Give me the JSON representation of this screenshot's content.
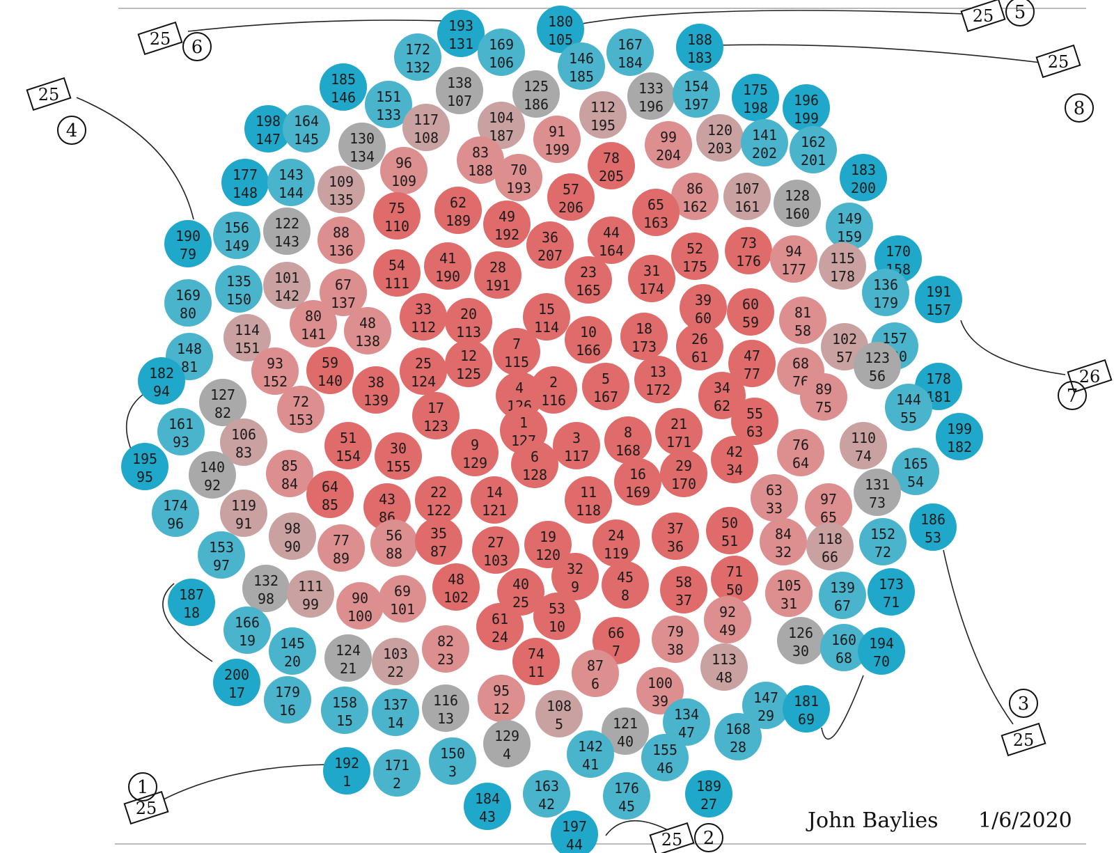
{
  "signature": "John Baylies",
  "date": "1/6/2020",
  "colors": {
    "center": "#e06b6b",
    "inner": "#dd8e8e",
    "middle": "#c9a1a1",
    "gray": "#a9a9a9",
    "outer": "#4ab4cc",
    "edge": "#1fa8c9"
  },
  "connectors": [
    {
      "label": "1",
      "count": "25"
    },
    {
      "label": "2",
      "count": "25"
    },
    {
      "label": "3",
      "count": "25"
    },
    {
      "label": "4",
      "count": "25"
    },
    {
      "label": "5",
      "count": "25"
    },
    {
      "label": "6",
      "count": "25"
    },
    {
      "label": "7",
      "count": "26"
    },
    {
      "label": "8",
      "count": "25"
    }
  ],
  "discs": [
    {
      "a": "193",
      "b": "131",
      "tone": "edge"
    },
    {
      "a": "180",
      "b": "105",
      "tone": "edge"
    },
    {
      "a": "172",
      "b": "132",
      "tone": "outer"
    },
    {
      "a": "169",
      "b": "106",
      "tone": "outer"
    },
    {
      "a": "167",
      "b": "184",
      "tone": "outer"
    },
    {
      "a": "188",
      "b": "183",
      "tone": "edge"
    },
    {
      "a": "185",
      "b": "146",
      "tone": "edge"
    },
    {
      "a": "151",
      "b": "133",
      "tone": "outer"
    },
    {
      "a": "138",
      "b": "107",
      "tone": "gray"
    },
    {
      "a": "146",
      "b": "185",
      "tone": "outer"
    },
    {
      "a": "125",
      "b": "186",
      "tone": "gray"
    },
    {
      "a": "133",
      "b": "196",
      "tone": "gray"
    },
    {
      "a": "154",
      "b": "197",
      "tone": "outer"
    },
    {
      "a": "175",
      "b": "198",
      "tone": "edge"
    },
    {
      "a": "196",
      "b": "199",
      "tone": "edge"
    },
    {
      "a": "198",
      "b": "147",
      "tone": "edge"
    },
    {
      "a": "164",
      "b": "145",
      "tone": "outer"
    },
    {
      "a": "130",
      "b": "134",
      "tone": "gray"
    },
    {
      "a": "117",
      "b": "108",
      "tone": "middle"
    },
    {
      "a": "104",
      "b": "187",
      "tone": "middle"
    },
    {
      "a": "112",
      "b": "195",
      "tone": "middle"
    },
    {
      "a": "99",
      "b": "204",
      "tone": "inner"
    },
    {
      "a": "120",
      "b": "203",
      "tone": "middle"
    },
    {
      "a": "141",
      "b": "202",
      "tone": "outer"
    },
    {
      "a": "162",
      "b": "201",
      "tone": "outer"
    },
    {
      "a": "183",
      "b": "200",
      "tone": "edge"
    },
    {
      "a": "177",
      "b": "148",
      "tone": "edge"
    },
    {
      "a": "143",
      "b": "144",
      "tone": "outer"
    },
    {
      "a": "109",
      "b": "135",
      "tone": "middle"
    },
    {
      "a": "96",
      "b": "109",
      "tone": "inner"
    },
    {
      "a": "83",
      "b": "188",
      "tone": "inner"
    },
    {
      "a": "91",
      "b": "199",
      "tone": "inner"
    },
    {
      "a": "70",
      "b": "193",
      "tone": "inner"
    },
    {
      "a": "78",
      "b": "205",
      "tone": "center"
    },
    {
      "a": "86",
      "b": "162",
      "tone": "inner"
    },
    {
      "a": "107",
      "b": "161",
      "tone": "middle"
    },
    {
      "a": "128",
      "b": "160",
      "tone": "gray"
    },
    {
      "a": "149",
      "b": "159",
      "tone": "outer"
    },
    {
      "a": "190",
      "b": "79",
      "tone": "edge"
    },
    {
      "a": "156",
      "b": "149",
      "tone": "outer"
    },
    {
      "a": "122",
      "b": "143",
      "tone": "gray"
    },
    {
      "a": "88",
      "b": "136",
      "tone": "inner"
    },
    {
      "a": "75",
      "b": "110",
      "tone": "center"
    },
    {
      "a": "62",
      "b": "189",
      "tone": "center"
    },
    {
      "a": "49",
      "b": "192",
      "tone": "center"
    },
    {
      "a": "57",
      "b": "206",
      "tone": "center"
    },
    {
      "a": "36",
      "b": "207",
      "tone": "center"
    },
    {
      "a": "44",
      "b": "164",
      "tone": "center"
    },
    {
      "a": "65",
      "b": "163",
      "tone": "center"
    },
    {
      "a": "170",
      "b": "158",
      "tone": "edge"
    },
    {
      "a": "169",
      "b": "80",
      "tone": "outer"
    },
    {
      "a": "135",
      "b": "150",
      "tone": "outer"
    },
    {
      "a": "101",
      "b": "142",
      "tone": "middle"
    },
    {
      "a": "67",
      "b": "137",
      "tone": "inner"
    },
    {
      "a": "54",
      "b": "111",
      "tone": "center"
    },
    {
      "a": "41",
      "b": "190",
      "tone": "center"
    },
    {
      "a": "28",
      "b": "191",
      "tone": "center"
    },
    {
      "a": "23",
      "b": "165",
      "tone": "center"
    },
    {
      "a": "31",
      "b": "174",
      "tone": "center"
    },
    {
      "a": "52",
      "b": "175",
      "tone": "center"
    },
    {
      "a": "73",
      "b": "176",
      "tone": "center"
    },
    {
      "a": "94",
      "b": "177",
      "tone": "inner"
    },
    {
      "a": "115",
      "b": "178",
      "tone": "middle"
    },
    {
      "a": "136",
      "b": "179",
      "tone": "outer"
    },
    {
      "a": "191",
      "b": "157",
      "tone": "edge"
    },
    {
      "a": "148",
      "b": "81",
      "tone": "outer"
    },
    {
      "a": "114",
      "b": "151",
      "tone": "middle"
    },
    {
      "a": "80",
      "b": "141",
      "tone": "inner"
    },
    {
      "a": "48",
      "b": "138",
      "tone": "inner"
    },
    {
      "a": "33",
      "b": "112",
      "tone": "center"
    },
    {
      "a": "20",
      "b": "113",
      "tone": "center"
    },
    {
      "a": "15",
      "b": "114",
      "tone": "center"
    },
    {
      "a": "10",
      "b": "166",
      "tone": "center"
    },
    {
      "a": "18",
      "b": "173",
      "tone": "center"
    },
    {
      "a": "39",
      "b": "60",
      "tone": "center"
    },
    {
      "a": "60",
      "b": "59",
      "tone": "center"
    },
    {
      "a": "81",
      "b": "58",
      "tone": "inner"
    },
    {
      "a": "102",
      "b": "57",
      "tone": "middle"
    },
    {
      "a": "157",
      "b": "180",
      "tone": "outer"
    },
    {
      "a": "182",
      "b": "94",
      "tone": "edge"
    },
    {
      "a": "127",
      "b": "82",
      "tone": "gray"
    },
    {
      "a": "93",
      "b": "152",
      "tone": "inner"
    },
    {
      "a": "59",
      "b": "140",
      "tone": "center"
    },
    {
      "a": "38",
      "b": "139",
      "tone": "center"
    },
    {
      "a": "25",
      "b": "124",
      "tone": "center"
    },
    {
      "a": "12",
      "b": "125",
      "tone": "center"
    },
    {
      "a": "7",
      "b": "115",
      "tone": "center"
    },
    {
      "a": "2",
      "b": "116",
      "tone": "center"
    },
    {
      "a": "5",
      "b": "167",
      "tone": "center"
    },
    {
      "a": "13",
      "b": "172",
      "tone": "center"
    },
    {
      "a": "26",
      "b": "61",
      "tone": "center"
    },
    {
      "a": "47",
      "b": "77",
      "tone": "center"
    },
    {
      "a": "68",
      "b": "76",
      "tone": "inner"
    },
    {
      "a": "123",
      "b": "56",
      "tone": "gray"
    },
    {
      "a": "178",
      "b": "181",
      "tone": "edge"
    },
    {
      "a": "161",
      "b": "93",
      "tone": "outer"
    },
    {
      "a": "106",
      "b": "83",
      "tone": "middle"
    },
    {
      "a": "72",
      "b": "153",
      "tone": "inner"
    },
    {
      "a": "17",
      "b": "123",
      "tone": "center"
    },
    {
      "a": "4",
      "b": "126",
      "tone": "center"
    },
    {
      "a": "34",
      "b": "62",
      "tone": "center"
    },
    {
      "a": "89",
      "b": "75",
      "tone": "inner"
    },
    {
      "a": "144",
      "b": "55",
      "tone": "outer"
    },
    {
      "a": "195",
      "b": "95",
      "tone": "edge"
    },
    {
      "a": "140",
      "b": "92",
      "tone": "gray"
    },
    {
      "a": "85",
      "b": "84",
      "tone": "inner"
    },
    {
      "a": "51",
      "b": "154",
      "tone": "center"
    },
    {
      "a": "30",
      "b": "155",
      "tone": "center"
    },
    {
      "a": "9",
      "b": "129",
      "tone": "center"
    },
    {
      "a": "1",
      "b": "127",
      "tone": "center"
    },
    {
      "a": "3",
      "b": "117",
      "tone": "center"
    },
    {
      "a": "8",
      "b": "168",
      "tone": "center"
    },
    {
      "a": "21",
      "b": "171",
      "tone": "center"
    },
    {
      "a": "55",
      "b": "63",
      "tone": "center"
    },
    {
      "a": "76",
      "b": "64",
      "tone": "inner"
    },
    {
      "a": "110",
      "b": "74",
      "tone": "middle"
    },
    {
      "a": "165",
      "b": "54",
      "tone": "outer"
    },
    {
      "a": "199",
      "b": "182",
      "tone": "edge"
    },
    {
      "a": "174",
      "b": "96",
      "tone": "outer"
    },
    {
      "a": "119",
      "b": "91",
      "tone": "middle"
    },
    {
      "a": "64",
      "b": "85",
      "tone": "center"
    },
    {
      "a": "43",
      "b": "86",
      "tone": "center"
    },
    {
      "a": "22",
      "b": "122",
      "tone": "center"
    },
    {
      "a": "14",
      "b": "121",
      "tone": "center"
    },
    {
      "a": "6",
      "b": "128",
      "tone": "center"
    },
    {
      "a": "11",
      "b": "118",
      "tone": "center"
    },
    {
      "a": "16",
      "b": "169",
      "tone": "center"
    },
    {
      "a": "29",
      "b": "170",
      "tone": "center"
    },
    {
      "a": "42",
      "b": "34",
      "tone": "center"
    },
    {
      "a": "63",
      "b": "33",
      "tone": "inner"
    },
    {
      "a": "97",
      "b": "65",
      "tone": "inner"
    },
    {
      "a": "131",
      "b": "73",
      "tone": "gray"
    },
    {
      "a": "186",
      "b": "53",
      "tone": "edge"
    },
    {
      "a": "153",
      "b": "97",
      "tone": "outer"
    },
    {
      "a": "98",
      "b": "90",
      "tone": "middle"
    },
    {
      "a": "77",
      "b": "89",
      "tone": "inner"
    },
    {
      "a": "56",
      "b": "88",
      "tone": "inner"
    },
    {
      "a": "35",
      "b": "87",
      "tone": "center"
    },
    {
      "a": "27",
      "b": "103",
      "tone": "center"
    },
    {
      "a": "19",
      "b": "120",
      "tone": "center"
    },
    {
      "a": "24",
      "b": "119",
      "tone": "center"
    },
    {
      "a": "37",
      "b": "36",
      "tone": "center"
    },
    {
      "a": "50",
      "b": "51",
      "tone": "center"
    },
    {
      "a": "84",
      "b": "32",
      "tone": "inner"
    },
    {
      "a": "118",
      "b": "66",
      "tone": "middle"
    },
    {
      "a": "152",
      "b": "72",
      "tone": "outer"
    },
    {
      "a": "132",
      "b": "98",
      "tone": "gray"
    },
    {
      "a": "111",
      "b": "99",
      "tone": "middle"
    },
    {
      "a": "90",
      "b": "100",
      "tone": "inner"
    },
    {
      "a": "69",
      "b": "101",
      "tone": "inner"
    },
    {
      "a": "48",
      "b": "102",
      "tone": "center"
    },
    {
      "a": "40",
      "b": "25",
      "tone": "center"
    },
    {
      "a": "32",
      "b": "9",
      "tone": "center"
    },
    {
      "a": "45",
      "b": "8",
      "tone": "center"
    },
    {
      "a": "58",
      "b": "37",
      "tone": "center"
    },
    {
      "a": "71",
      "b": "50",
      "tone": "center"
    },
    {
      "a": "105",
      "b": "31",
      "tone": "inner"
    },
    {
      "a": "139",
      "b": "67",
      "tone": "outer"
    },
    {
      "a": "173",
      "b": "71",
      "tone": "edge"
    },
    {
      "a": "187",
      "b": "18",
      "tone": "edge"
    },
    {
      "a": "166",
      "b": "19",
      "tone": "outer"
    },
    {
      "a": "61",
      "b": "24",
      "tone": "center"
    },
    {
      "a": "53",
      "b": "10",
      "tone": "center"
    },
    {
      "a": "66",
      "b": "7",
      "tone": "center"
    },
    {
      "a": "79",
      "b": "38",
      "tone": "inner"
    },
    {
      "a": "92",
      "b": "49",
      "tone": "inner"
    },
    {
      "a": "126",
      "b": "30",
      "tone": "gray"
    },
    {
      "a": "160",
      "b": "68",
      "tone": "outer"
    },
    {
      "a": "194",
      "b": "70",
      "tone": "edge"
    },
    {
      "a": "145",
      "b": "20",
      "tone": "outer"
    },
    {
      "a": "124",
      "b": "21",
      "tone": "gray"
    },
    {
      "a": "103",
      "b": "22",
      "tone": "middle"
    },
    {
      "a": "82",
      "b": "23",
      "tone": "inner"
    },
    {
      "a": "74",
      "b": "11",
      "tone": "center"
    },
    {
      "a": "87",
      "b": "6",
      "tone": "inner"
    },
    {
      "a": "100",
      "b": "39",
      "tone": "inner"
    },
    {
      "a": "113",
      "b": "48",
      "tone": "middle"
    },
    {
      "a": "147",
      "b": "29",
      "tone": "outer"
    },
    {
      "a": "200",
      "b": "17",
      "tone": "edge"
    },
    {
      "a": "179",
      "b": "16",
      "tone": "outer"
    },
    {
      "a": "158",
      "b": "15",
      "tone": "outer"
    },
    {
      "a": "137",
      "b": "14",
      "tone": "outer"
    },
    {
      "a": "116",
      "b": "13",
      "tone": "gray"
    },
    {
      "a": "95",
      "b": "12",
      "tone": "inner"
    },
    {
      "a": "108",
      "b": "5",
      "tone": "middle"
    },
    {
      "a": "121",
      "b": "40",
      "tone": "gray"
    },
    {
      "a": "134",
      "b": "47",
      "tone": "outer"
    },
    {
      "a": "168",
      "b": "28",
      "tone": "outer"
    },
    {
      "a": "181",
      "b": "69",
      "tone": "edge"
    },
    {
      "a": "192",
      "b": "1",
      "tone": "edge"
    },
    {
      "a": "171",
      "b": "2",
      "tone": "outer"
    },
    {
      "a": "150",
      "b": "3",
      "tone": "outer"
    },
    {
      "a": "129",
      "b": "4",
      "tone": "gray"
    },
    {
      "a": "142",
      "b": "41",
      "tone": "outer"
    },
    {
      "a": "155",
      "b": "46",
      "tone": "outer"
    },
    {
      "a": "189",
      "b": "27",
      "tone": "edge"
    },
    {
      "a": "184",
      "b": "43",
      "tone": "edge"
    },
    {
      "a": "163",
      "b": "42",
      "tone": "outer"
    },
    {
      "a": "176",
      "b": "45",
      "tone": "outer"
    },
    {
      "a": "197",
      "b": "44",
      "tone": "edge"
    }
  ]
}
